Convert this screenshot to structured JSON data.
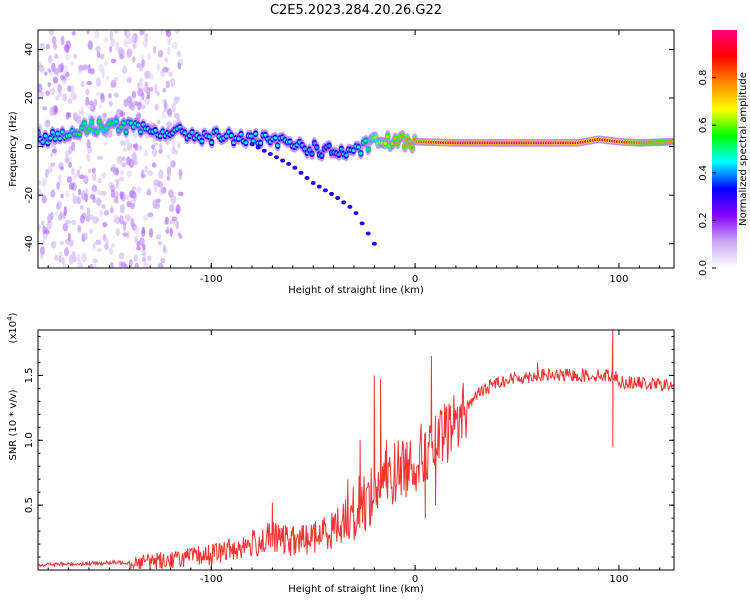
{
  "title": "C2E5.2023.284.20.26.G22",
  "chart_data": [
    {
      "type": "heatmap",
      "name": "spectrogram",
      "xlabel": "Height of straight line (km)",
      "ylabel": "Frequency (Hz)",
      "xlim": [
        -185,
        127
      ],
      "ylim": [
        -50,
        48
      ],
      "xticks": [
        -100,
        0,
        100
      ],
      "yticks": [
        -40,
        -20,
        0,
        20,
        40
      ],
      "colorbar": {
        "label": "Normalized spectral amplitude",
        "range": [
          0,
          1
        ],
        "ticks": [
          0.0,
          0.2,
          0.4,
          0.6,
          0.8
        ],
        "tick_labels": [
          "0.0",
          "0.2",
          "0.4",
          "0.6",
          "0.8"
        ],
        "colormap": [
          "#ffffff",
          "#c9a8f5",
          "#8800ff",
          "#0000ff",
          "#00ffff",
          "#00ff00",
          "#ffff00",
          "#ff8800",
          "#ff0000",
          "#ff0080"
        ]
      },
      "ridge": {
        "x": [
          -180,
          -170,
          -160,
          -150,
          -140,
          -130,
          -120,
          -110,
          -100,
          -90,
          -80,
          -70,
          -60,
          -50,
          -40,
          -30,
          -25,
          -20,
          -10,
          0,
          20,
          50,
          80,
          90,
          100,
          110,
          127
        ],
        "frequency": [
          4,
          5,
          8,
          9,
          8,
          6,
          6,
          5,
          4,
          4,
          3,
          2,
          1,
          -1,
          -2,
          -3,
          0,
          2,
          2,
          2,
          1.5,
          1.5,
          1.5,
          3,
          2,
          1.5,
          2
        ],
        "amplitude": [
          0.45,
          0.5,
          0.55,
          0.55,
          0.5,
          0.45,
          0.45,
          0.45,
          0.45,
          0.45,
          0.45,
          0.45,
          0.45,
          0.4,
          0.4,
          0.45,
          0.5,
          0.6,
          0.75,
          0.8,
          0.95,
          0.95,
          0.9,
          0.9,
          0.9,
          0.8,
          0.75
        ]
      },
      "branches": [
        {
          "x": [
            -80,
            -60,
            -50,
            -40,
            -30,
            -20
          ],
          "frequency": [
            1,
            -8,
            -15,
            -20,
            -26,
            -40
          ],
          "amplitude": 0.3
        }
      ]
    },
    {
      "type": "line",
      "name": "snr",
      "xlabel": "Height of straight line (km)",
      "ylabel": "SNR (10 * v/v)",
      "y_multiplier": "(x10⁴)",
      "y_multiplier_base": "(x10",
      "y_multiplier_exp": "4",
      "y_multiplier_close": ")",
      "xlim": [
        -185,
        127
      ],
      "ylim": [
        0.0,
        1.85
      ],
      "xticks": [
        -100,
        0,
        100
      ],
      "yticks": [
        0.5,
        1.0,
        1.5
      ],
      "ytick_labels": [
        "0.5",
        "1.0",
        "1.5"
      ],
      "color": "#ee3333",
      "trend": {
        "x": [
          -185,
          -160,
          -140,
          -120,
          -100,
          -80,
          -70,
          -60,
          -50,
          -40,
          -30,
          -20,
          -10,
          0,
          10,
          20,
          30,
          40,
          50,
          60,
          80,
          95,
          98,
          100,
          110,
          127
        ],
        "y": [
          0.04,
          0.05,
          0.06,
          0.08,
          0.12,
          0.2,
          0.25,
          0.22,
          0.25,
          0.32,
          0.45,
          0.6,
          0.75,
          0.85,
          0.95,
          1.15,
          1.35,
          1.45,
          1.48,
          1.5,
          1.5,
          1.5,
          1.5,
          1.45,
          1.44,
          1.42
        ]
      },
      "spikes": [
        {
          "x": -20,
          "y": 1.5
        },
        {
          "x": -17,
          "y": 1.47
        },
        {
          "x": -14,
          "y": 1.0
        },
        {
          "x": 8,
          "y": 1.65
        },
        {
          "x": 5,
          "y": 0.4
        },
        {
          "x": 10,
          "y": 0.5
        },
        {
          "x": -27,
          "y": 1.0
        },
        {
          "x": -33,
          "y": 0.7
        },
        {
          "x": -70,
          "y": 0.52
        },
        {
          "x": 97,
          "y": 1.85
        },
        {
          "x": 97,
          "y": 0.95
        },
        {
          "x": 60,
          "y": 1.6
        }
      ]
    }
  ]
}
